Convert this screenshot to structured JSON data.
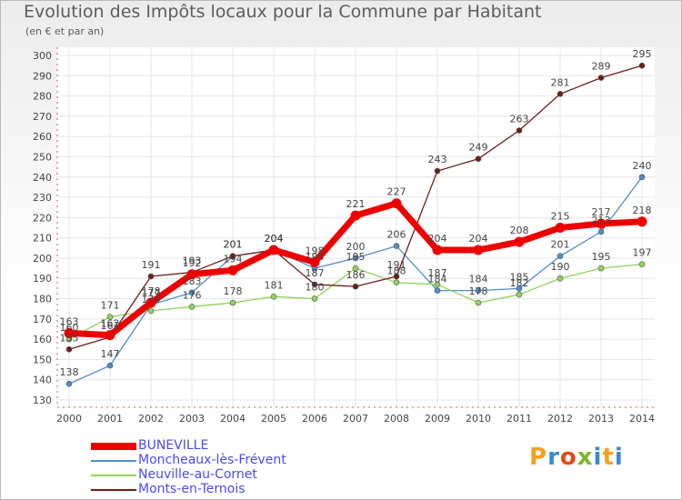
{
  "title": "Evolution des Impôts locaux pour la Commune par Habitant",
  "subtitle": "(en € et par an)",
  "logo": {
    "letters": [
      "P",
      "r",
      "o",
      "x",
      "i",
      "t",
      "i"
    ],
    "colors": [
      "#f4a020",
      "#3a8ad0",
      "#e04a1a",
      "#7ab828",
      "#3a8ad0",
      "#f4a020",
      "#3a8ad0"
    ]
  },
  "chart_data": {
    "type": "line",
    "x": [
      "2000",
      "2001",
      "2002",
      "2003",
      "2004",
      "2005",
      "2006",
      "2007",
      "2008",
      "2009",
      "2010",
      "2011",
      "2012",
      "2013",
      "2014"
    ],
    "ylim": [
      130,
      300
    ],
    "yticks": [
      "130",
      "140",
      "150",
      "160",
      "170",
      "180",
      "190",
      "200",
      "210",
      "220",
      "230",
      "240",
      "250",
      "260",
      "270",
      "280",
      "290",
      "300"
    ],
    "grid": true,
    "legend_position": "bottom-left",
    "series": [
      {
        "name": "Moncheaux-lès-Frévent",
        "color": "#4f8ec9",
        "values": [
          138,
          147,
          177,
          183,
          201,
          204,
          195,
          200,
          206,
          184,
          184,
          185,
          201,
          213,
          240
        ],
        "labels": [
          "138",
          "147",
          "177",
          "183",
          "201",
          "204",
          "195",
          "200",
          "206",
          "184",
          "184",
          "185",
          "201",
          "213",
          "240"
        ]
      },
      {
        "name": "Neuville-au-Cornet",
        "color": "#8fd35a",
        "values": [
          160,
          171,
          174,
          176,
          178,
          181,
          180,
          195,
          188,
          187,
          178,
          182,
          190,
          195,
          197
        ],
        "labels": [
          "160",
          "171",
          "174",
          "176",
          "178",
          "181",
          "180",
          "195",
          "188",
          "187",
          "178",
          "182",
          "190",
          "195",
          "197"
        ]
      },
      {
        "name": "Monts-en-Ternois",
        "color": "#6e1c1c",
        "values": [
          155,
          161,
          191,
          193,
          201,
          204,
          187,
          186,
          191,
          243,
          249,
          263,
          281,
          289,
          295
        ],
        "labels": [
          "155",
          "161",
          "191",
          "193",
          "201",
          "204",
          "187",
          "186",
          "191",
          "243",
          "249",
          "263",
          "281",
          "289",
          "295"
        ]
      },
      {
        "name": "BUNEVILLE",
        "color": "#ee0000",
        "values": [
          163,
          162,
          178,
          192,
          194,
          204,
          198,
          221,
          227,
          204,
          204,
          208,
          215,
          217,
          218
        ],
        "labels": [
          "163",
          "162",
          "178",
          "192",
          "194",
          "204",
          "198",
          "221",
          "227",
          "204",
          "204",
          "208",
          "215",
          "217",
          "218"
        ]
      }
    ],
    "legend_order": [
      3,
      0,
      1,
      2
    ]
  }
}
